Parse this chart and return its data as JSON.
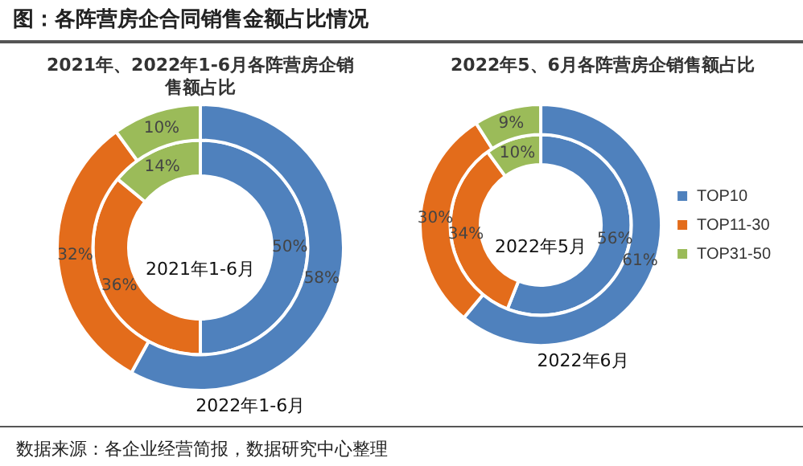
{
  "chart_data": [
    {
      "type": "donut",
      "title": "2021年、2022年1-6月各阵营房企销售额占比",
      "categories": [
        null,
        null,
        null
      ],
      "colors": [
        "#4f81bd",
        "#e36c1b",
        "#9bbb59"
      ],
      "series": [
        {
          "name": "2022年1-6月",
          "values": [
            58,
            32,
            10
          ],
          "value_labels": [
            "58%",
            "32%",
            "10%"
          ]
        },
        {
          "name": "2021年1-6月",
          "values": [
            50,
            36,
            14
          ],
          "value_labels": [
            "50%",
            "36%",
            "14%"
          ]
        }
      ],
      "legend": false,
      "annotations": [
        "图：各阵营房企合同销售金额占比情况"
      ]
    },
    {
      "type": "donut",
      "title": "2022年5、6月各阵营房企销售额占比",
      "categories": [
        "TOP10",
        "TOP11-30",
        "TOP31-50"
      ],
      "colors": [
        "#4f81bd",
        "#e36c1b",
        "#9bbb59"
      ],
      "series": [
        {
          "name": "2022年6月",
          "values": [
            61,
            30,
            9
          ],
          "value_labels": [
            "61%",
            "30%",
            "9%"
          ]
        },
        {
          "name": "2022年5月",
          "values": [
            56,
            34,
            10
          ],
          "value_labels": [
            "56%",
            "34%",
            "10%"
          ]
        }
      ],
      "legend": "right",
      "annotations": [
        "数据来源：各企业经营简报，数据研究中心整理"
      ]
    }
  ]
}
